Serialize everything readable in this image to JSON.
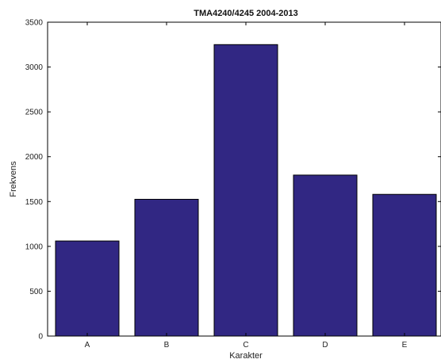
{
  "chart_data": {
    "type": "bar",
    "title": "TMA4240/4245 2004-2013",
    "xlabel": "Karakter",
    "ylabel": "Frekvens",
    "categories": [
      "A",
      "B",
      "C",
      "D",
      "E"
    ],
    "values": [
      1060,
      1525,
      3250,
      1795,
      1580
    ],
    "ylim": [
      0,
      3500
    ],
    "yticks": [
      0,
      500,
      1000,
      1500,
      2000,
      2500,
      3000,
      3500
    ],
    "grid": false,
    "bar_color": "#312783",
    "edge_color": "#000000"
  }
}
